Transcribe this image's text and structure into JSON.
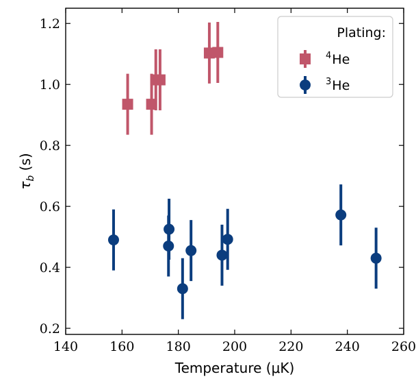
{
  "chart_data": {
    "type": "scatter",
    "xlabel": "Temperature (μK)",
    "ylabel": "τ_b (s)",
    "xlim": [
      140,
      260
    ],
    "ylim": [
      0.18,
      1.25
    ],
    "x_ticks": [
      140,
      160,
      180,
      200,
      220,
      240,
      260
    ],
    "y_ticks": [
      0.2,
      0.4,
      0.6,
      0.8,
      1.0,
      1.2
    ],
    "x_tick_labels": [
      "140",
      "160",
      "180",
      "200",
      "220",
      "240",
      "260"
    ],
    "y_tick_labels": [
      "0.2",
      "0.4",
      "0.6",
      "0.8",
      "1.0",
      "1.2"
    ],
    "grid": false,
    "legend": {
      "title": "Plating:",
      "placement": "top-right"
    },
    "series": [
      {
        "name": "4He",
        "name_super": "4",
        "name_base": "He",
        "marker": "square",
        "color": "#c0566a",
        "points": [
          {
            "x": 162,
            "y": 0.935,
            "err": 0.1
          },
          {
            "x": 170.5,
            "y": 0.935,
            "err": 0.1
          },
          {
            "x": 172,
            "y": 1.015,
            "err": 0.1
          },
          {
            "x": 173.5,
            "y": 1.015,
            "err": 0.1
          },
          {
            "x": 191,
            "y": 1.103,
            "err": 0.1
          },
          {
            "x": 194,
            "y": 1.105,
            "err": 0.1
          }
        ]
      },
      {
        "name": "3He",
        "name_super": "3",
        "name_base": "He",
        "marker": "circle",
        "color": "#0b3d7e",
        "points": [
          {
            "x": 157,
            "y": 0.49,
            "err": 0.1
          },
          {
            "x": 176.5,
            "y": 0.47,
            "err": 0.1
          },
          {
            "x": 176.7,
            "y": 0.525,
            "err": 0.1
          },
          {
            "x": 181.5,
            "y": 0.33,
            "err": 0.1
          },
          {
            "x": 184.5,
            "y": 0.455,
            "err": 0.1
          },
          {
            "x": 195.5,
            "y": 0.44,
            "err": 0.1
          },
          {
            "x": 197.5,
            "y": 0.492,
            "err": 0.1
          },
          {
            "x": 237.7,
            "y": 0.572,
            "err": 0.1
          },
          {
            "x": 250.2,
            "y": 0.43,
            "err": 0.1
          }
        ]
      }
    ]
  }
}
